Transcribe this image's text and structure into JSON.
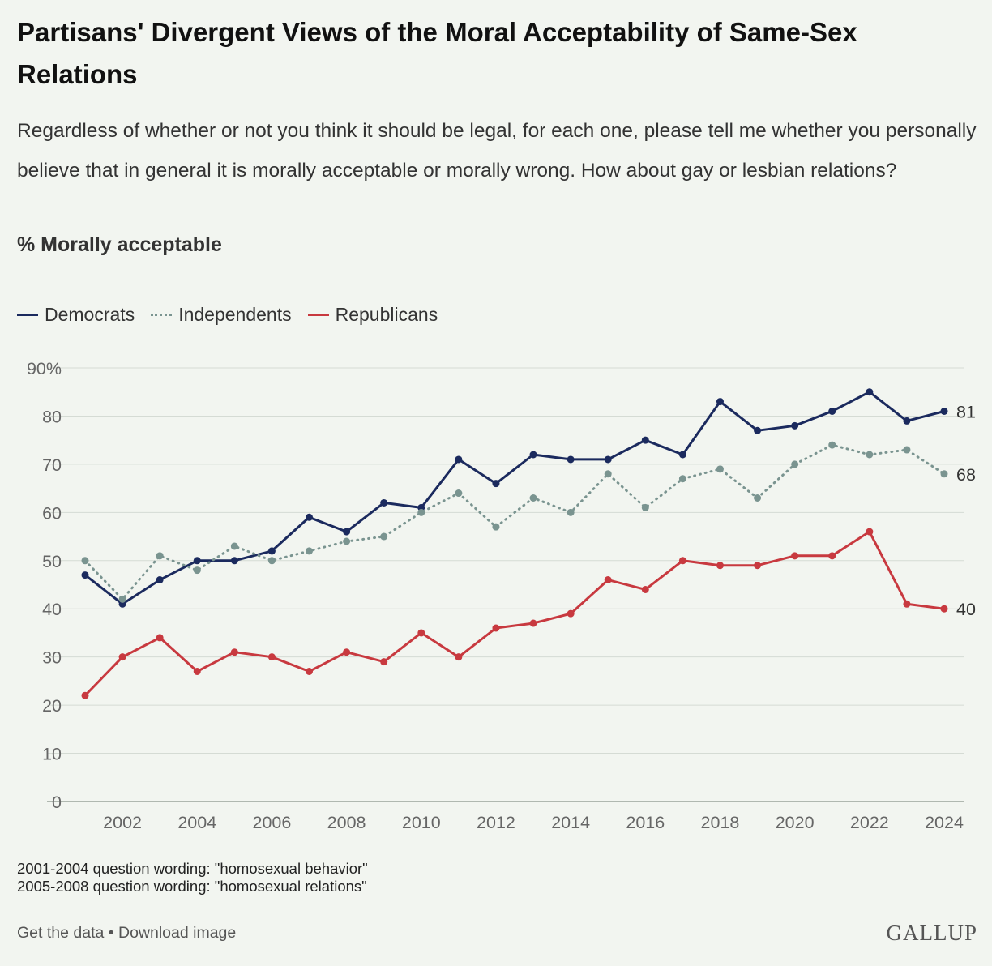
{
  "header": {
    "title": "Partisans' Divergent Views of the Moral Acceptability of Same-Sex Relations",
    "subtitle": "Regardless of whether or not you think it should be legal, for each one, please tell me whether you personally believe that in general it is morally acceptable or morally wrong. How about gay or lesbian relations?",
    "measure": "% Morally acceptable"
  },
  "legend": [
    {
      "label": "Democrats",
      "color": "#1b2a5e",
      "style": "solid"
    },
    {
      "label": "Independents",
      "color": "#7a9490",
      "style": "dotted"
    },
    {
      "label": "Republicans",
      "color": "#c8393f",
      "style": "solid"
    }
  ],
  "chart_data": {
    "type": "line",
    "x": [
      2001,
      2002,
      2003,
      2004,
      2005,
      2006,
      2007,
      2008,
      2009,
      2010,
      2011,
      2012,
      2013,
      2014,
      2015,
      2016,
      2017,
      2018,
      2019,
      2020,
      2021,
      2022,
      2023,
      2024
    ],
    "x_ticks": [
      "2002",
      "2004",
      "2006",
      "2008",
      "2010",
      "2012",
      "2014",
      "2016",
      "2018",
      "2020",
      "2022",
      "2024"
    ],
    "y_ticks": [
      "0",
      "10",
      "20",
      "30",
      "40",
      "50",
      "60",
      "70",
      "80",
      "90%"
    ],
    "ylim": [
      0,
      90
    ],
    "grid": true,
    "legend_position": "top-left",
    "series": [
      {
        "name": "Democrats",
        "color": "#1b2a5e",
        "style": "solid",
        "values": [
          47,
          41,
          46,
          50,
          50,
          52,
          59,
          56,
          62,
          61,
          71,
          66,
          72,
          71,
          71,
          75,
          72,
          83,
          77,
          78,
          81,
          85,
          79,
          81
        ],
        "end_label": "81"
      },
      {
        "name": "Independents",
        "color": "#7a9490",
        "style": "dotted",
        "values": [
          50,
          42,
          51,
          48,
          53,
          50,
          52,
          54,
          55,
          60,
          64,
          57,
          63,
          60,
          68,
          61,
          67,
          69,
          63,
          70,
          74,
          72,
          73,
          68
        ],
        "end_label": "68"
      },
      {
        "name": "Republicans",
        "color": "#c8393f",
        "style": "solid",
        "values": [
          22,
          30,
          34,
          27,
          31,
          30,
          27,
          31,
          29,
          35,
          30,
          36,
          37,
          39,
          46,
          44,
          50,
          49,
          49,
          51,
          51,
          56,
          41,
          40
        ],
        "end_label": "40"
      }
    ]
  },
  "notes": [
    "2001-2004 question wording: \"homosexual behavior\"",
    "2005-2008 question wording: \"homosexual relations\""
  ],
  "footer": {
    "get_data": "Get the data",
    "separator": "•",
    "download": "Download image",
    "logo": "GALLUP"
  }
}
